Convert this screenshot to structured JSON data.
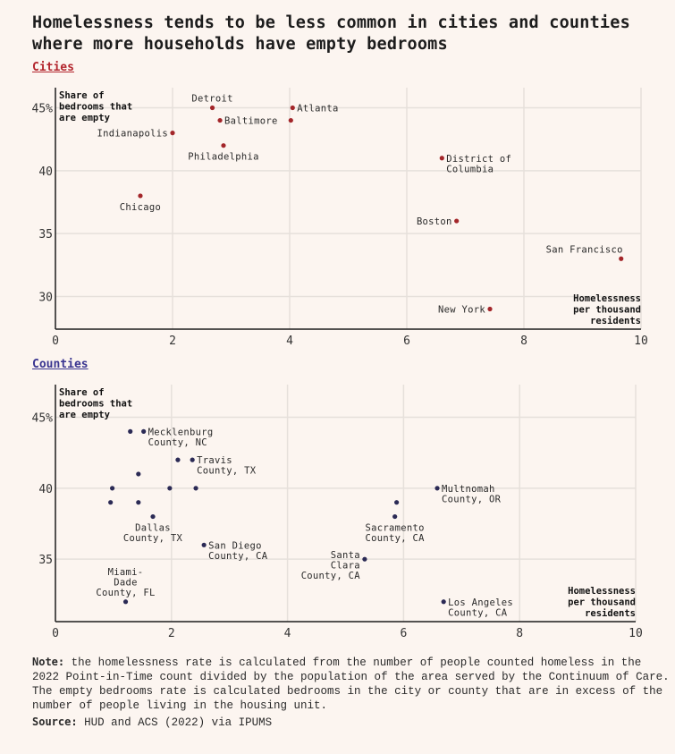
{
  "title": "Homelessness tends to be less common in cities and counties where more households have empty bedrooms",
  "note_label": "Note:",
  "note_text": "the homelessness rate is calculated from the number of people counted homeless in the 2022 Point-in-Time count divided by the population of the area served by the Continuum of Care. The empty bedrooms rate is calculated bedrooms in the city or county that are in excess of the number of people living in the housing unit.",
  "source_label": "Source:",
  "source_text": "HUD and ACS (2022) via IPUMS",
  "colors": {
    "cities": "#a3262a",
    "counties": "#2b2a55",
    "grid": "#e6e0db",
    "axis": "#1c1c1c"
  },
  "chart_data": [
    {
      "type": "scatter",
      "title": "Cities",
      "ylabel": [
        "Share of",
        "bedrooms that",
        "are empty"
      ],
      "xlabel": [
        "Homelessness",
        "per thousand",
        "residents"
      ],
      "xlim": [
        0,
        10
      ],
      "ylim": [
        27.4,
        46.6
      ],
      "xticks": [
        "0",
        "2",
        "4",
        "6",
        "8",
        "10"
      ],
      "xtick_values": [
        0,
        2,
        4,
        6,
        8,
        10
      ],
      "yticks": [
        "30",
        "35",
        "40",
        "45%"
      ],
      "ytick_values": [
        30,
        35,
        40,
        45
      ],
      "grid": true,
      "points": [
        {
          "x": 2.68,
          "y": 45,
          "label": [
            "Detroit"
          ],
          "pos": "above"
        },
        {
          "x": 4.05,
          "y": 45,
          "label": [
            "Atlanta"
          ],
          "pos": "right"
        },
        {
          "x": 2.81,
          "y": 44,
          "label": [
            "Baltimore"
          ],
          "pos": "right"
        },
        {
          "x": 4.02,
          "y": 44,
          "label": [],
          "pos": "none"
        },
        {
          "x": 2.0,
          "y": 43,
          "label": [
            "Indianapolis"
          ],
          "pos": "left"
        },
        {
          "x": 2.87,
          "y": 42,
          "label": [
            "Philadelphia"
          ],
          "pos": "below"
        },
        {
          "x": 1.45,
          "y": 38,
          "label": [
            "Chicago"
          ],
          "pos": "below"
        },
        {
          "x": 6.6,
          "y": 41,
          "label": [
            "District of",
            "Columbia"
          ],
          "pos": "right"
        },
        {
          "x": 6.85,
          "y": 36,
          "label": [
            "Boston"
          ],
          "pos": "left"
        },
        {
          "x": 9.66,
          "y": 33,
          "label": [
            "San Francisco"
          ],
          "pos": "above-left"
        },
        {
          "x": 7.42,
          "y": 29,
          "label": [
            "New York"
          ],
          "pos": "left"
        }
      ]
    },
    {
      "type": "scatter",
      "title": "Counties",
      "ylabel": [
        "Share of",
        "bedrooms that",
        "are empty"
      ],
      "xlabel": [
        "Homelessness",
        "per thousand",
        "residents"
      ],
      "xlim": [
        0,
        10
      ],
      "ylim": [
        30.6,
        47.3
      ],
      "xticks": [
        "0",
        "2",
        "4",
        "6",
        "8",
        "10"
      ],
      "xtick_values": [
        0,
        2,
        4,
        6,
        8,
        10
      ],
      "yticks": [
        "35",
        "40",
        "45%"
      ],
      "ytick_values": [
        35,
        40,
        45
      ],
      "grid": true,
      "points": [
        {
          "x": 1.29,
          "y": 44,
          "label": [],
          "pos": "none"
        },
        {
          "x": 1.52,
          "y": 44,
          "label": [
            "Mecklenburg",
            "County, NC"
          ],
          "pos": "right"
        },
        {
          "x": 2.11,
          "y": 42,
          "label": [],
          "pos": "none"
        },
        {
          "x": 2.36,
          "y": 42,
          "label": [
            "Travis",
            "County, TX"
          ],
          "pos": "right"
        },
        {
          "x": 1.43,
          "y": 41,
          "label": [],
          "pos": "none"
        },
        {
          "x": 0.98,
          "y": 40,
          "label": [],
          "pos": "none"
        },
        {
          "x": 1.97,
          "y": 40,
          "label": [],
          "pos": "none"
        },
        {
          "x": 2.42,
          "y": 40,
          "label": [],
          "pos": "none"
        },
        {
          "x": 0.95,
          "y": 39,
          "label": [],
          "pos": "none"
        },
        {
          "x": 1.43,
          "y": 39,
          "label": [],
          "pos": "none"
        },
        {
          "x": 1.68,
          "y": 38,
          "label": [
            "Dallas",
            "County, TX"
          ],
          "pos": "below"
        },
        {
          "x": 2.56,
          "y": 36,
          "label": [
            "San Diego",
            "County, CA"
          ],
          "pos": "right"
        },
        {
          "x": 1.21,
          "y": 32,
          "label": [
            "Miami-",
            "Dade",
            "County, FL"
          ],
          "pos": "above"
        },
        {
          "x": 6.58,
          "y": 40,
          "label": [
            "Multnomah",
            "County, OR"
          ],
          "pos": "right"
        },
        {
          "x": 5.88,
          "y": 39,
          "label": [],
          "pos": "none"
        },
        {
          "x": 5.85,
          "y": 38,
          "label": [
            "Sacramento",
            "County, CA"
          ],
          "pos": "below"
        },
        {
          "x": 5.33,
          "y": 35,
          "label": [
            "Santa",
            "Clara",
            "County, CA"
          ],
          "pos": "left"
        },
        {
          "x": 6.69,
          "y": 32,
          "label": [
            "Los Angeles",
            "County, CA"
          ],
          "pos": "right"
        }
      ]
    }
  ]
}
